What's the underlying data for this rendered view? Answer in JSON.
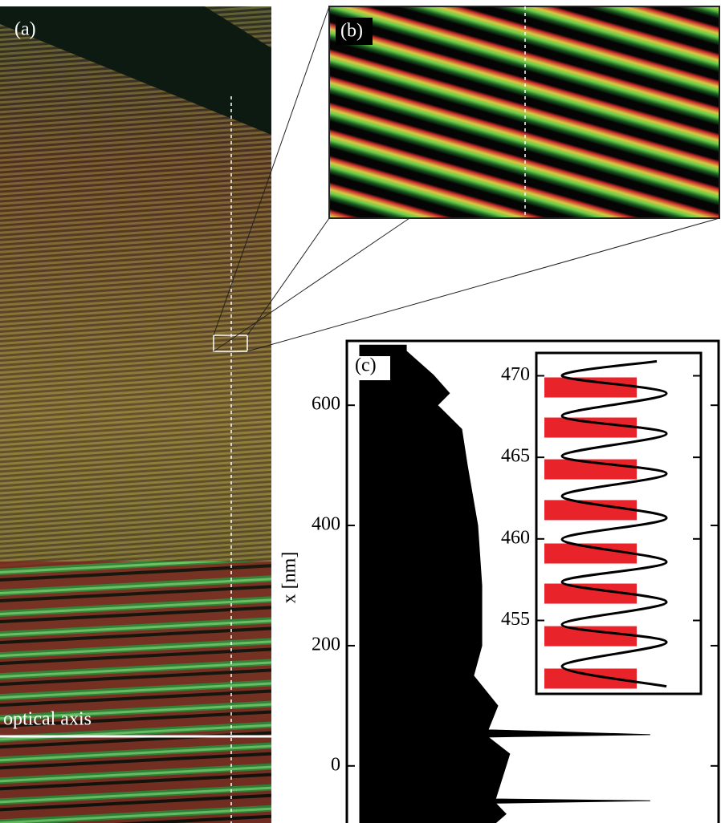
{
  "panels": {
    "a": "(a)",
    "b": "(b)"
  },
  "labels": {
    "axis": "optical axis"
  },
  "chart_data": [
    {
      "type": "area",
      "title": "(c)",
      "y_label": "x [nm]",
      "x": [
        700,
        690,
        650,
        620,
        600,
        560,
        500,
        400,
        300,
        200,
        150,
        100,
        60,
        52,
        48,
        20,
        0,
        -55,
        -58,
        -62,
        -80,
        -95
      ],
      "values": [
        16,
        16,
        23.3,
        27.6,
        24.4,
        30.9,
        32.4,
        35.2,
        36.3,
        36.3,
        34.1,
        40.6,
        38,
        81.6,
        38,
        43.8,
        42.8,
        40,
        81.6,
        40,
        42.8,
        40
      ],
      "color": "#000000",
      "xlim": [
        -95,
        707
      ],
      "xticks": [
        0,
        200,
        400,
        600
      ],
      "ylim": [
        0,
        100
      ]
    },
    {
      "type": "inset",
      "bars": [
        [
          468.67,
          469.9
        ],
        [
          466.21,
          467.44
        ],
        [
          463.65,
          464.88
        ],
        [
          461.15,
          462.38
        ],
        [
          458.49,
          459.72
        ],
        [
          456.03,
          457.26
        ],
        [
          453.42,
          454.65
        ],
        [
          450.82,
          452.05
        ]
      ],
      "bar_value": 59,
      "bar_color": "#e8232a",
      "curve": {
        "x": [
          470.89,
          470.0,
          468.92,
          467.54,
          466.46,
          465.08,
          464.0,
          462.62,
          461.29,
          459.97,
          458.59,
          457.36,
          456.13,
          454.75,
          453.67,
          452.19,
          450.96
        ],
        "values": [
          71.8,
          11.3,
          78,
          11.3,
          78,
          11.3,
          78,
          11.3,
          78,
          11.3,
          78,
          11.3,
          78,
          11.3,
          78,
          11.3,
          78
        ]
      },
      "xlim": [
        450.5,
        471.4
      ],
      "xticks": [
        455,
        460,
        465,
        470
      ],
      "ylim": [
        0,
        100
      ]
    }
  ]
}
